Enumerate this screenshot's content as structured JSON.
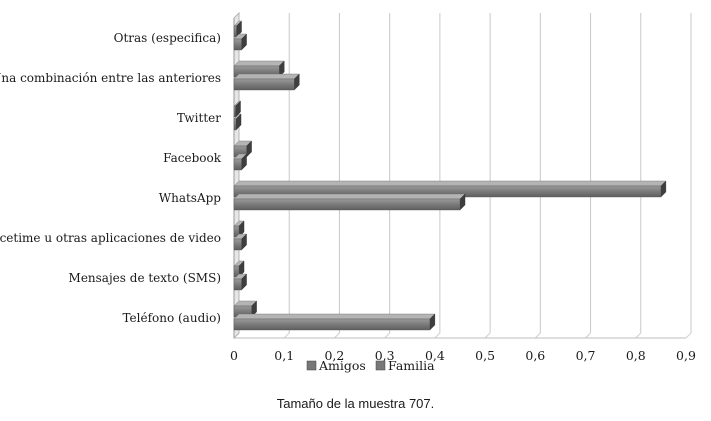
{
  "chart_data": {
    "type": "bar",
    "orientation": "horizontal",
    "categories": [
      "Otras (especifica)",
      "Una combinación entre las anteriores",
      "Twitter",
      "Facebook",
      "WhatsApp",
      "Facetime u otras aplicaciones de video",
      "Mensajes de texto (SMS)",
      "Teléfono (audio)"
    ],
    "series": [
      {
        "name": "Amigos",
        "values": [
          0.005,
          0.09,
          0.003,
          0.025,
          0.85,
          0.01,
          0.01,
          0.035
        ]
      },
      {
        "name": "Familia",
        "values": [
          0.015,
          0.12,
          0.004,
          0.015,
          0.45,
          0.015,
          0.015,
          0.39
        ]
      }
    ],
    "xlim": [
      0,
      0.9
    ],
    "xticks": [
      "0",
      "0,1",
      "0,2",
      "0,3",
      "0,4",
      "0,5",
      "0,6",
      "0,7",
      "0,8",
      "0,9"
    ],
    "grid": "vertical",
    "legend_position": "bottom",
    "colors": {
      "Amigos": "#7f7f7f",
      "Familia": "#6d6d6d",
      "grid": "#c8c8c8"
    }
  },
  "caption": "Tamaño de la muestra 707."
}
